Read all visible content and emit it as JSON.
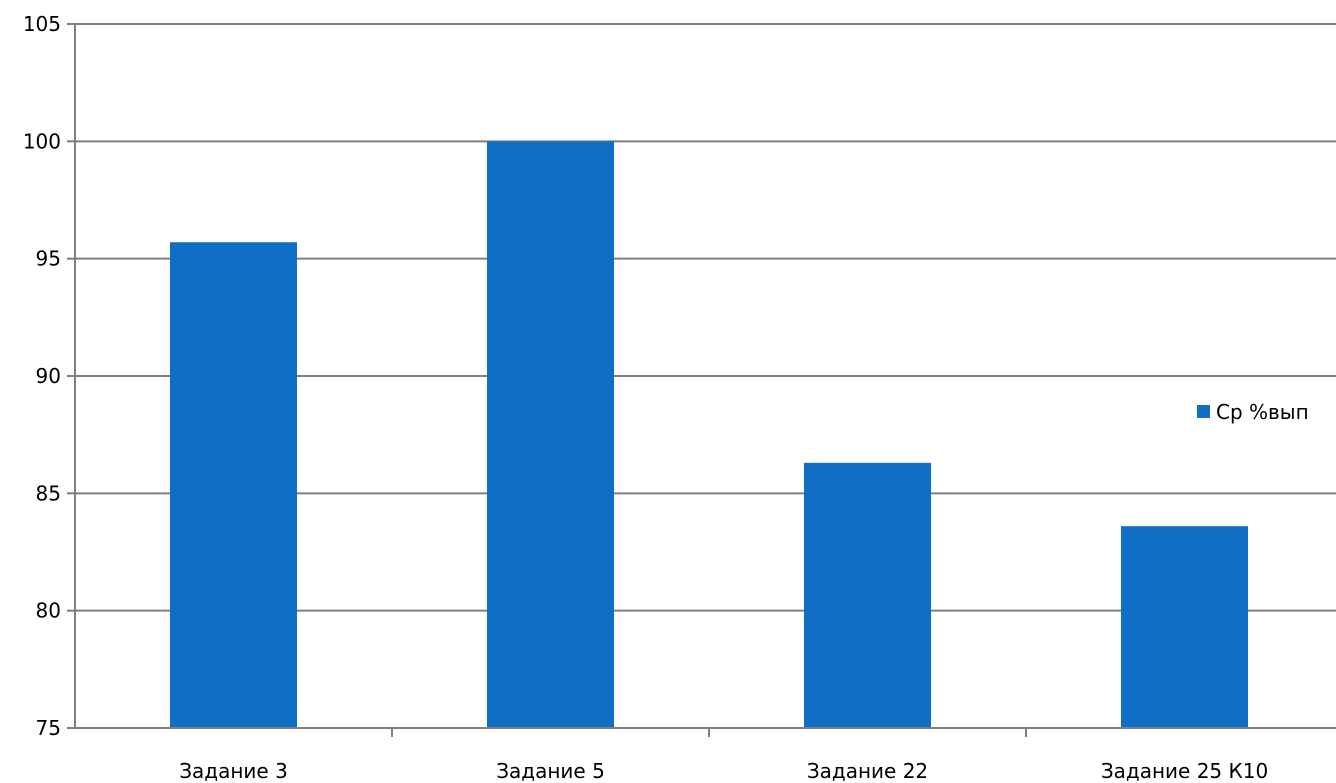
{
  "chart_data": {
    "type": "bar",
    "categories": [
      "Задание 3",
      "Задание 5",
      "Задание 22",
      "Задание 25 К10"
    ],
    "series": [
      {
        "name": "Ср %вып",
        "values": [
          95.7,
          100,
          86.3,
          83.6
        ]
      }
    ],
    "ylim": [
      75,
      105
    ],
    "yticks": [
      75,
      80,
      85,
      90,
      95,
      100,
      105
    ],
    "grid": true,
    "legend_position": "right",
    "colors": {
      "bar": "#106EC4",
      "grid": "#7F7F7F",
      "axis": "#7F7F7F"
    }
  }
}
